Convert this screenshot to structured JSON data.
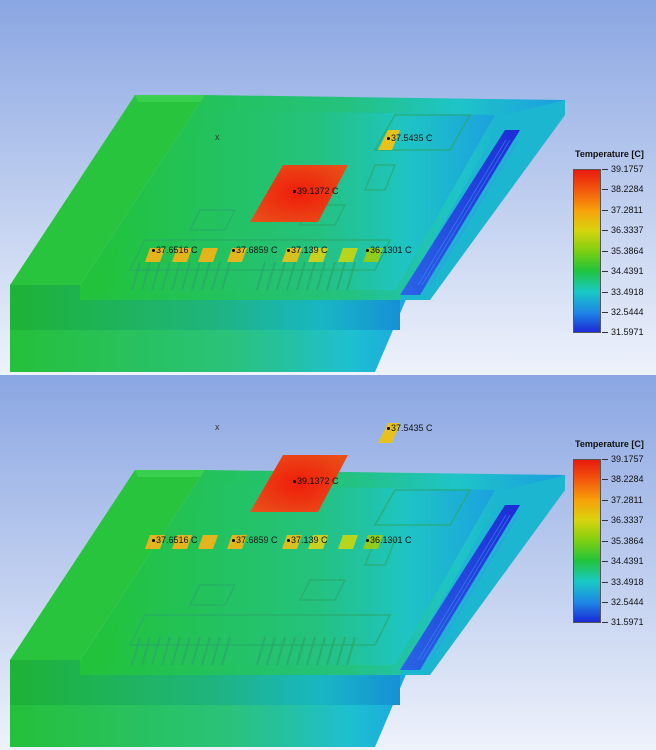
{
  "legend": {
    "title": "Temperature [C]",
    "ticks": [
      "39.1757",
      "38.2284",
      "37.2811",
      "36.3337",
      "35.3864",
      "34.4391",
      "33.4918",
      "32.5444",
      "31.5971"
    ]
  },
  "probes": {
    "top_right_component": "37.5435 C",
    "center_chip": "39.1372 C",
    "row_1": "37.6516 C",
    "row_2": "37.6859 C",
    "row_3": "37.139 C",
    "row_4": "36.1301 C"
  },
  "origin_mark": "x",
  "colors": {
    "hot": "#e63b12",
    "warm": "#e8b81a",
    "body": "#22c23a",
    "cool": "#1ec0d0",
    "cold": "#1c2ad6",
    "background_top": "#8aa6e2",
    "background_bottom": "#eef2fb"
  }
}
